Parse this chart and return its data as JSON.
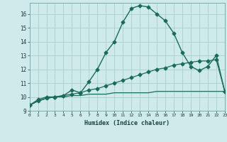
{
  "xlabel": "Humidex (Indice chaleur)",
  "background_color": "#ceeaea",
  "grid_color": "#aacece",
  "line_color": "#1a6b5a",
  "x_ticks": [
    0,
    1,
    2,
    3,
    4,
    5,
    6,
    7,
    8,
    9,
    10,
    11,
    12,
    13,
    14,
    15,
    16,
    17,
    18,
    19,
    20,
    21,
    22,
    23
  ],
  "y_ticks": [
    9,
    10,
    11,
    12,
    13,
    14,
    15,
    16
  ],
  "xlim": [
    0,
    23
  ],
  "ylim": [
    9.0,
    16.8
  ],
  "line1_x": [
    0,
    1,
    2,
    3,
    4,
    5,
    6,
    7,
    8,
    9,
    10,
    11,
    12,
    13,
    14,
    15,
    16,
    17,
    18,
    19,
    20,
    21,
    22,
    23
  ],
  "line1_y": [
    9.4,
    9.8,
    10.0,
    10.0,
    10.1,
    10.5,
    10.3,
    11.1,
    12.0,
    13.2,
    14.0,
    15.4,
    16.4,
    16.6,
    16.5,
    16.0,
    15.5,
    14.6,
    13.2,
    12.2,
    11.9,
    12.2,
    13.0,
    10.4
  ],
  "line2_x": [
    0,
    1,
    2,
    3,
    4,
    5,
    6,
    7,
    8,
    9,
    10,
    11,
    12,
    13,
    14,
    15,
    16,
    17,
    18,
    19,
    20,
    21,
    22,
    23
  ],
  "line2_y": [
    9.4,
    9.7,
    9.9,
    10.0,
    10.1,
    10.2,
    10.3,
    10.5,
    10.6,
    10.8,
    11.0,
    11.2,
    11.4,
    11.6,
    11.8,
    12.0,
    12.1,
    12.3,
    12.4,
    12.5,
    12.6,
    12.6,
    12.7,
    10.4
  ],
  "line3_x": [
    0,
    1,
    2,
    3,
    4,
    5,
    6,
    7,
    8,
    9,
    10,
    11,
    12,
    13,
    14,
    15,
    16,
    17,
    18,
    19,
    20,
    21,
    22,
    23
  ],
  "line3_y": [
    9.4,
    9.7,
    9.9,
    10.0,
    10.0,
    10.1,
    10.1,
    10.2,
    10.2,
    10.2,
    10.3,
    10.3,
    10.3,
    10.3,
    10.3,
    10.4,
    10.4,
    10.4,
    10.4,
    10.4,
    10.4,
    10.4,
    10.4,
    10.4
  ]
}
